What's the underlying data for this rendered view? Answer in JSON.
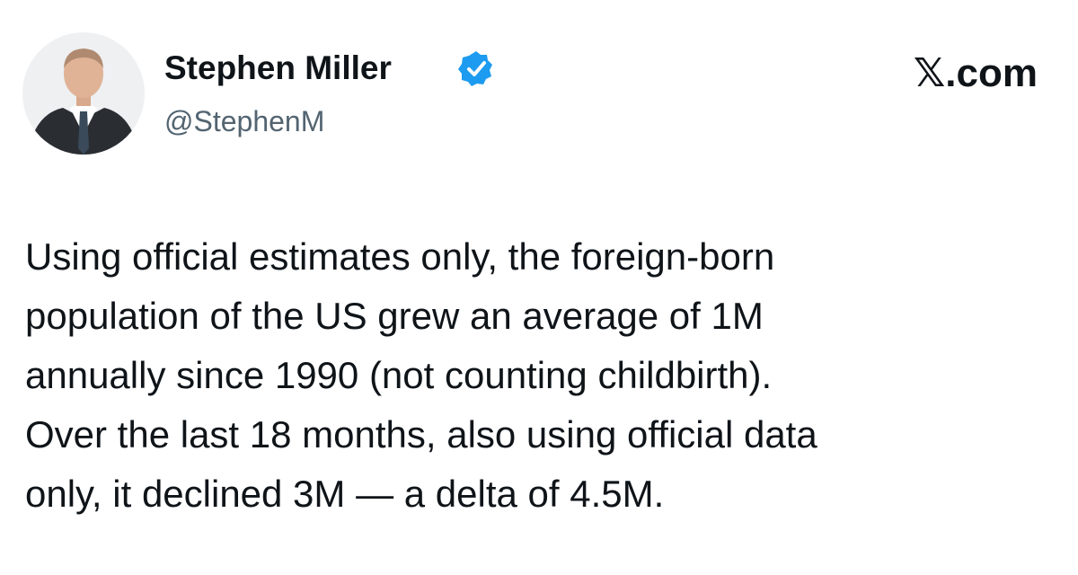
{
  "author": {
    "name": "Stephen Miller",
    "handle": "@StephenM"
  },
  "site": "𝕏.com",
  "body": {
    "lines": [
      "Using official estimates only, the foreign-born",
      "population of the US grew an average of 1M",
      "annually since 1990 (not counting childbirth).",
      "Over the last 18 months, also using official data",
      "only, it declined 3M — a delta of 4.5M."
    ]
  }
}
